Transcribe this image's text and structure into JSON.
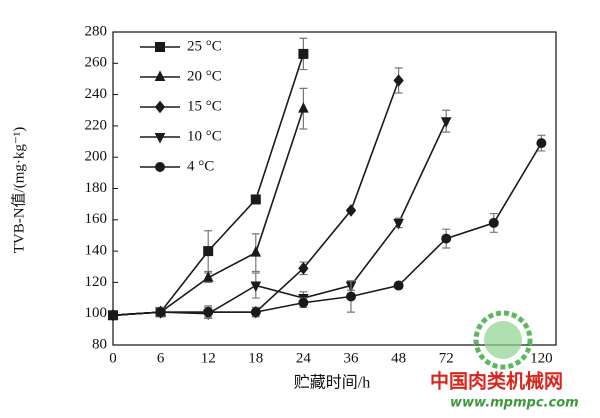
{
  "chart_data": {
    "type": "line",
    "x_label": "贮藏时间/h",
    "y_label": "TVB-N值/(mg·kg⁻¹)",
    "categories": [
      "0",
      "6",
      "12",
      "18",
      "24",
      "36",
      "48",
      "72",
      null,
      "120"
    ],
    "ylim": [
      80,
      280
    ],
    "yticks": [
      80,
      100,
      120,
      140,
      160,
      180,
      200,
      220,
      240,
      260,
      280
    ],
    "legend": "upper left",
    "series": [
      {
        "name": "25 °C",
        "color": "#1a1a1a",
        "marker": "square",
        "values": [
          99,
          101,
          140,
          173,
          266,
          null,
          null,
          null,
          null,
          null
        ],
        "errors": [
          2,
          3,
          13,
          2,
          10,
          null,
          null,
          null,
          null,
          null
        ]
      },
      {
        "name": "20 °C",
        "color": "#1a1a1a",
        "marker": "triangle",
        "values": [
          99,
          101,
          123,
          139,
          231,
          null,
          null,
          null,
          null,
          null
        ],
        "errors": [
          2,
          3,
          3,
          12,
          13,
          null,
          null,
          null,
          null,
          null
        ]
      },
      {
        "name": "15 °C",
        "color": "#1a1a1a",
        "marker": "diamond",
        "values": [
          99,
          101,
          101,
          101,
          129,
          166,
          249,
          null,
          null,
          null
        ],
        "errors": [
          2,
          2,
          3,
          3,
          4,
          1,
          8,
          null,
          null,
          null
        ]
      },
      {
        "name": "10 °C",
        "color": "#1a1a1a",
        "marker": "triangle-down",
        "values": [
          99,
          101,
          100,
          118,
          110,
          118,
          158,
          223,
          null,
          null
        ],
        "errors": [
          2,
          2,
          3,
          8,
          4,
          3,
          3,
          7,
          null,
          null
        ]
      },
      {
        "name": "4 °C",
        "color": "#1a1a1a",
        "marker": "circle",
        "values": [
          99,
          101,
          101,
          101,
          107,
          111,
          118,
          148,
          158,
          209
        ],
        "errors": [
          2,
          2,
          4,
          3,
          3,
          10,
          2,
          6,
          6,
          5
        ]
      }
    ]
  },
  "watermark": {
    "title": "中国肉类机械网",
    "url": "www.mpmpc.com"
  }
}
